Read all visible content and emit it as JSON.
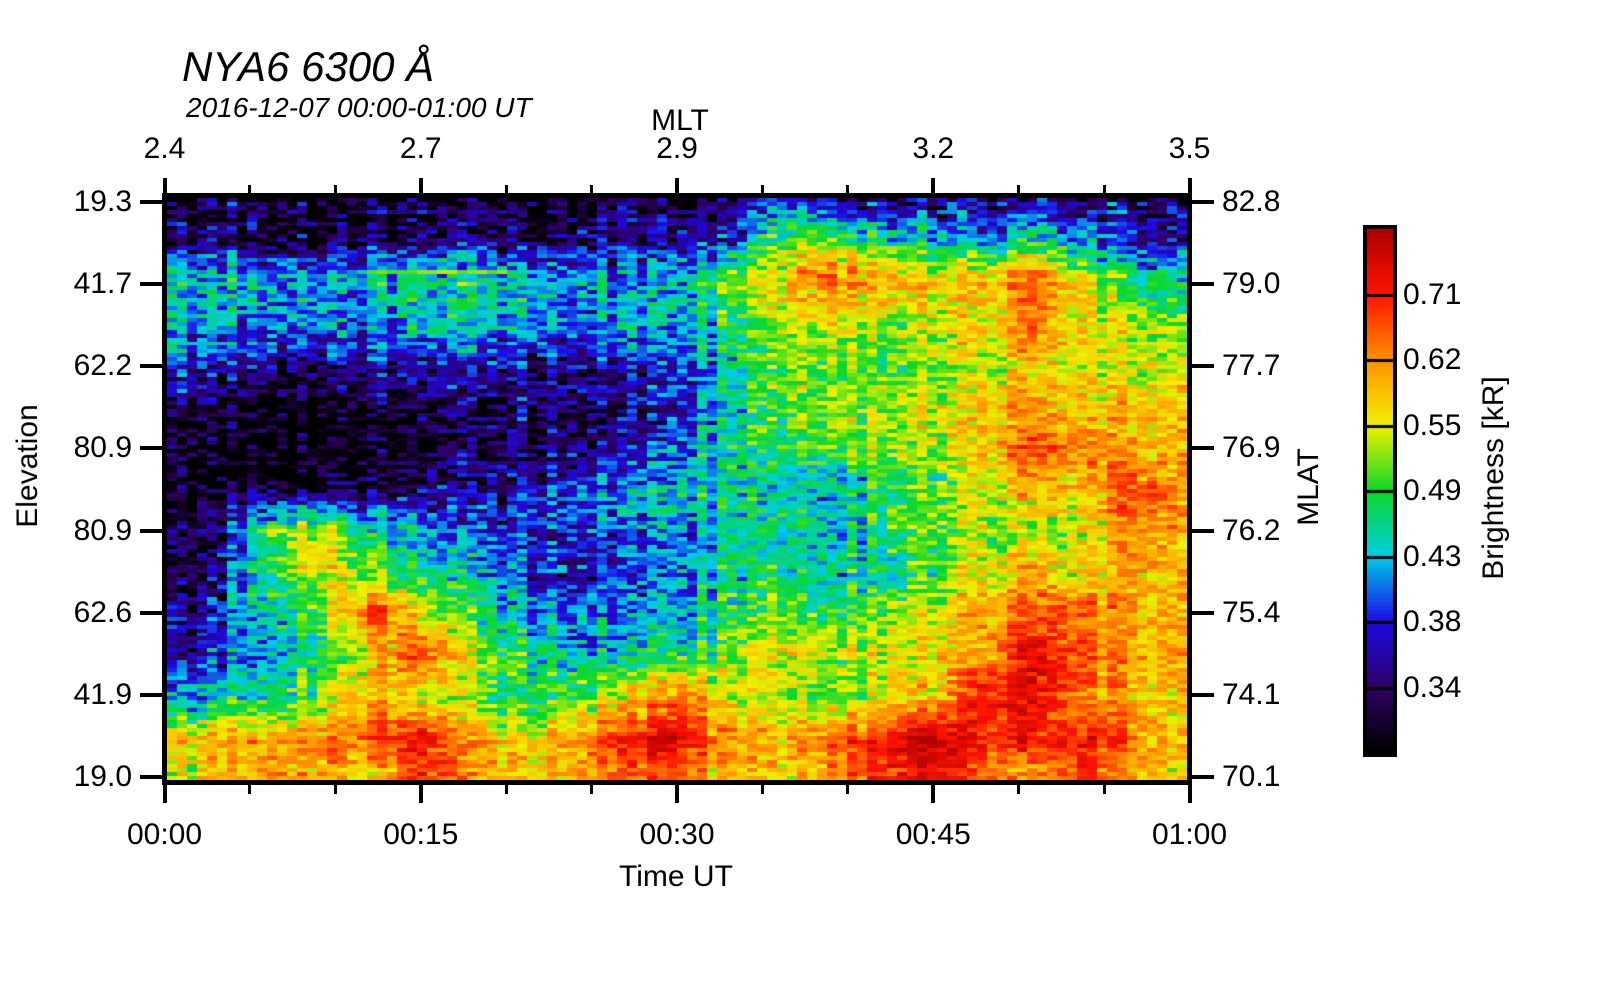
{
  "chart_data": {
    "type": "heatmap",
    "title": "NYA6 6300 Å",
    "subtitle": "2016-12-07 00:00-01:00 UT",
    "x_axis": {
      "label": "Time UT",
      "ticks": [
        "00:00",
        "00:15",
        "00:30",
        "00:45",
        "01:00"
      ],
      "minor_ticks_per_interval": 2
    },
    "top_axis": {
      "label": "MLT",
      "ticks": [
        "2.4",
        "2.7",
        "2.9",
        "3.2",
        "3.5"
      ],
      "minor_ticks_per_interval": 2
    },
    "left_axis": {
      "label": "Elevation",
      "ticks": [
        "19.3",
        "41.7",
        "62.2",
        "80.9",
        "80.9",
        "62.6",
        "41.9",
        "19.0"
      ]
    },
    "right_axis": {
      "label": "MLAT",
      "ticks": [
        "82.8",
        "79.0",
        "77.7",
        "76.9",
        "76.2",
        "75.4",
        "74.1",
        "70.1"
      ]
    },
    "colorbar": {
      "label": "Brightness [kR]",
      "ticks": [
        "0.71",
        "0.62",
        "0.55",
        "0.49",
        "0.43",
        "0.38",
        "0.34"
      ],
      "range_kR": [
        0.301,
        0.802
      ],
      "scale": "log",
      "segments": 8
    },
    "colormap_stops": [
      [
        0.0,
        [
          0,
          0,
          0
        ]
      ],
      [
        0.125,
        [
          46,
          0,
          100
        ]
      ],
      [
        0.25,
        [
          30,
          10,
          230
        ]
      ],
      [
        0.375,
        [
          0,
          205,
          230
        ]
      ],
      [
        0.5,
        [
          10,
          215,
          40
        ]
      ],
      [
        0.625,
        [
          240,
          240,
          0
        ]
      ],
      [
        0.75,
        [
          255,
          145,
          0
        ]
      ],
      [
        0.875,
        [
          255,
          20,
          0
        ]
      ],
      [
        1.0,
        [
          175,
          0,
          0
        ]
      ]
    ],
    "grid_kR": {
      "comment": "coarse estimated brightness field (kR), 15 rows (top elev 19.3 to bottom elev 19.0) x 21 cols (00:00 to 01:00)",
      "cols": 21,
      "rows": 15,
      "values": [
        [
          0.31,
          0.31,
          0.32,
          0.31,
          0.31,
          0.32,
          0.31,
          0.32,
          0.31,
          0.33,
          0.32,
          0.33,
          0.38,
          0.34,
          0.33,
          0.34,
          0.34,
          0.35,
          0.34,
          0.36,
          0.33
        ],
        [
          0.34,
          0.34,
          0.34,
          0.33,
          0.34,
          0.34,
          0.35,
          0.34,
          0.35,
          0.36,
          0.36,
          0.37,
          0.5,
          0.52,
          0.46,
          0.44,
          0.42,
          0.46,
          0.42,
          0.39,
          0.36
        ],
        [
          0.45,
          0.44,
          0.44,
          0.43,
          0.44,
          0.45,
          0.47,
          0.45,
          0.43,
          0.42,
          0.43,
          0.5,
          0.58,
          0.66,
          0.62,
          0.57,
          0.6,
          0.66,
          0.56,
          0.48,
          0.45
        ],
        [
          0.43,
          0.43,
          0.42,
          0.42,
          0.42,
          0.43,
          0.44,
          0.43,
          0.42,
          0.44,
          0.42,
          0.47,
          0.53,
          0.56,
          0.52,
          0.55,
          0.57,
          0.63,
          0.57,
          0.54,
          0.5
        ],
        [
          0.39,
          0.38,
          0.37,
          0.36,
          0.37,
          0.37,
          0.38,
          0.37,
          0.36,
          0.37,
          0.38,
          0.45,
          0.5,
          0.52,
          0.5,
          0.52,
          0.54,
          0.58,
          0.56,
          0.57,
          0.54
        ],
        [
          0.33,
          0.31,
          0.305,
          0.305,
          0.305,
          0.31,
          0.33,
          0.34,
          0.33,
          0.35,
          0.36,
          0.44,
          0.5,
          0.52,
          0.53,
          0.55,
          0.58,
          0.62,
          0.57,
          0.59,
          0.56
        ],
        [
          0.31,
          0.3,
          0.3,
          0.3,
          0.3,
          0.31,
          0.32,
          0.33,
          0.34,
          0.36,
          0.4,
          0.46,
          0.48,
          0.5,
          0.52,
          0.54,
          0.58,
          0.67,
          0.64,
          0.61,
          0.58
        ],
        [
          0.3,
          0.31,
          0.31,
          0.32,
          0.33,
          0.34,
          0.36,
          0.38,
          0.4,
          0.42,
          0.44,
          0.46,
          0.44,
          0.43,
          0.46,
          0.5,
          0.54,
          0.6,
          0.58,
          0.7,
          0.6
        ],
        [
          0.31,
          0.34,
          0.52,
          0.56,
          0.46,
          0.41,
          0.39,
          0.38,
          0.4,
          0.4,
          0.42,
          0.44,
          0.46,
          0.44,
          0.48,
          0.52,
          0.54,
          0.52,
          0.56,
          0.66,
          0.58
        ],
        [
          0.31,
          0.35,
          0.5,
          0.58,
          0.52,
          0.47,
          0.43,
          0.4,
          0.38,
          0.39,
          0.42,
          0.46,
          0.48,
          0.44,
          0.46,
          0.5,
          0.56,
          0.6,
          0.56,
          0.62,
          0.6
        ],
        [
          0.32,
          0.37,
          0.46,
          0.5,
          0.68,
          0.56,
          0.48,
          0.43,
          0.41,
          0.41,
          0.43,
          0.46,
          0.5,
          0.48,
          0.52,
          0.56,
          0.6,
          0.66,
          0.66,
          0.62,
          0.58
        ],
        [
          0.34,
          0.39,
          0.44,
          0.48,
          0.56,
          0.68,
          0.54,
          0.48,
          0.45,
          0.45,
          0.46,
          0.52,
          0.57,
          0.53,
          0.55,
          0.58,
          0.6,
          0.75,
          0.66,
          0.63,
          0.6
        ],
        [
          0.4,
          0.44,
          0.48,
          0.52,
          0.6,
          0.54,
          0.5,
          0.48,
          0.5,
          0.56,
          0.64,
          0.55,
          0.52,
          0.51,
          0.54,
          0.58,
          0.72,
          0.72,
          0.62,
          0.6,
          0.57
        ],
        [
          0.56,
          0.6,
          0.62,
          0.62,
          0.66,
          0.72,
          0.6,
          0.57,
          0.62,
          0.7,
          0.74,
          0.62,
          0.58,
          0.64,
          0.72,
          0.78,
          0.7,
          0.7,
          0.72,
          0.64,
          0.58
        ],
        [
          0.53,
          0.58,
          0.64,
          0.62,
          0.56,
          0.68,
          0.62,
          0.58,
          0.6,
          0.66,
          0.64,
          0.58,
          0.56,
          0.62,
          0.7,
          0.72,
          0.66,
          0.6,
          0.68,
          0.62,
          0.56
        ]
      ]
    }
  }
}
